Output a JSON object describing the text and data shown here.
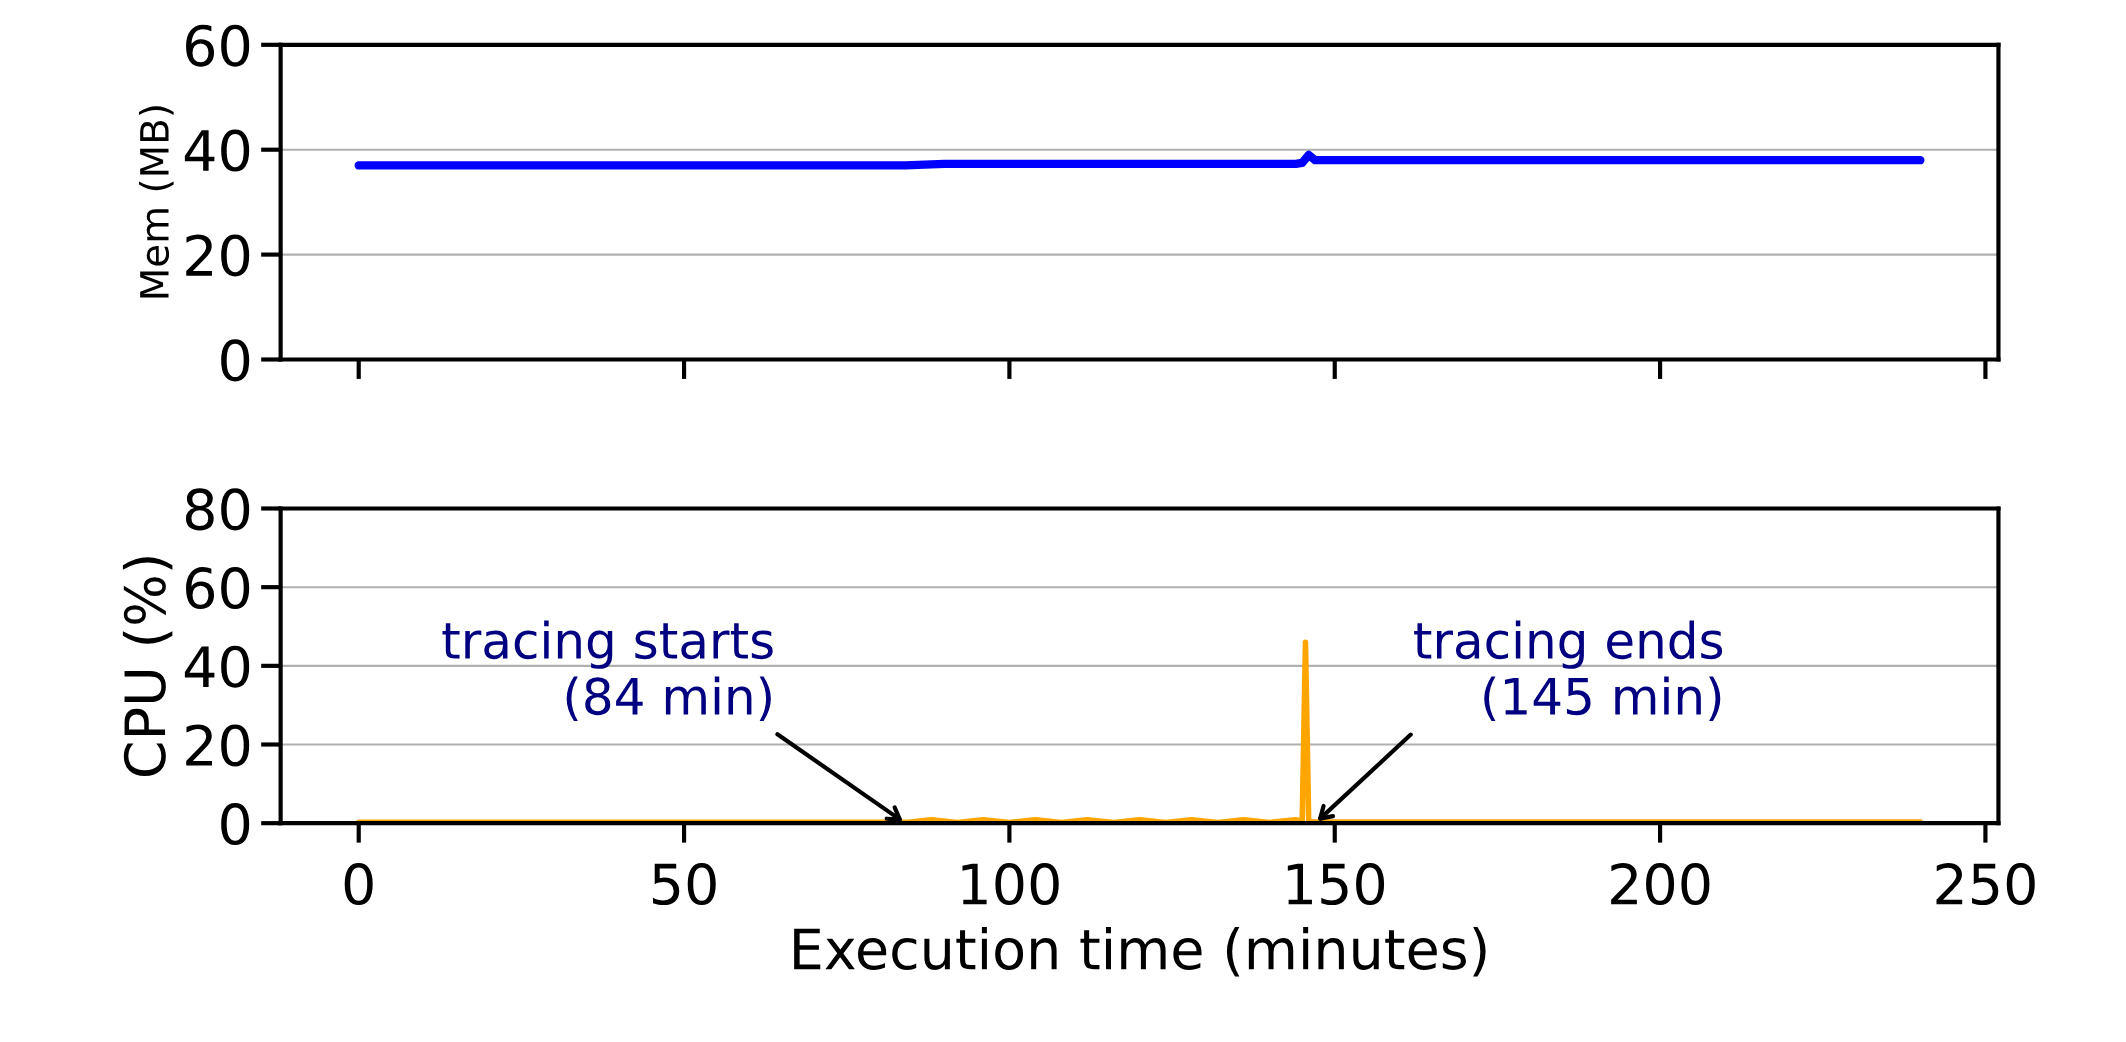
{
  "chart_data": [
    {
      "type": "line",
      "ylabel": "Mem (MB)",
      "xlim": [
        -12,
        252
      ],
      "xticks": [
        0,
        50,
        100,
        150,
        200,
        250
      ],
      "ylim": [
        0,
        60
      ],
      "yticks": [
        0,
        20,
        40,
        60
      ],
      "grid": "y",
      "tick_labels": "y",
      "series": [
        {
          "color": "#0000ff",
          "x": [
            0,
            84,
            90,
            110,
            130,
            144,
            145,
            146,
            147,
            150,
            240
          ],
          "values": [
            37,
            37,
            37.3,
            37.3,
            37.3,
            37.3,
            37.5,
            39,
            38,
            38,
            38
          ]
        }
      ]
    },
    {
      "type": "line",
      "xlabel": "Execution time (minutes)",
      "ylabel": "CPU (%)",
      "xlim": [
        -12,
        252
      ],
      "xticks": [
        0,
        50,
        100,
        150,
        200,
        250
      ],
      "ylim": [
        0,
        80
      ],
      "yticks": [
        0,
        20,
        40,
        60,
        80
      ],
      "grid": "y",
      "series": [
        {
          "color": "#ffa500",
          "x": [
            0,
            84,
            88,
            92,
            96,
            100,
            104,
            108,
            112,
            116,
            120,
            124,
            128,
            132,
            136,
            140,
            144,
            145,
            145.5,
            146,
            147,
            240
          ],
          "values": [
            0.2,
            0.2,
            0.9,
            0.2,
            0.9,
            0.2,
            0.9,
            0.2,
            0.9,
            0.2,
            0.9,
            0.2,
            0.9,
            0.2,
            0.9,
            0.2,
            0.9,
            0.5,
            46,
            0.5,
            0.3,
            0.3
          ]
        }
      ],
      "annotations": [
        {
          "text": "tracing starts\n(84 min)",
          "x": 84,
          "y": 0
        },
        {
          "text": "tracing ends\n(145 min)",
          "x": 147,
          "y": 0
        }
      ]
    }
  ]
}
